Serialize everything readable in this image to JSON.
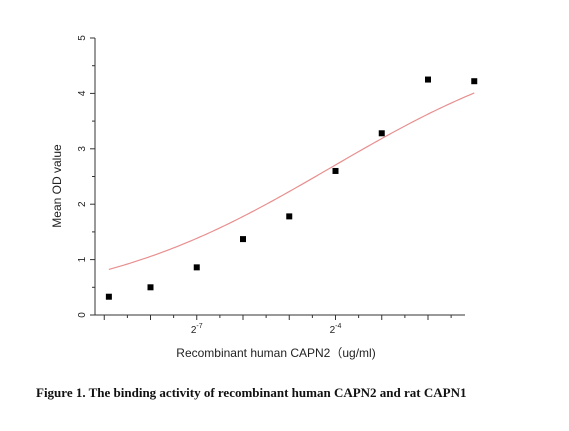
{
  "chart_data": {
    "type": "scatter",
    "xlabel": "Recombinant human  CAPN2（ug/ml)",
    "ylabel": "Mean OD value",
    "x_scale": "log2",
    "x_tick_labels": [
      {
        "base": "2",
        "exp": "-7",
        "value": -7
      },
      {
        "base": "2",
        "exp": "-4",
        "value": -4
      }
    ],
    "xlim": [
      -9.2,
      -1.2
    ],
    "ylim": [
      0,
      5
    ],
    "y_ticks": [
      0,
      1,
      2,
      3,
      4,
      5
    ],
    "grid": false,
    "legend": "none",
    "series": [
      {
        "points": [
          {
            "x": -8.9,
            "y": 0.33
          },
          {
            "x": -8.0,
            "y": 0.5
          },
          {
            "x": -7.0,
            "y": 0.86
          },
          {
            "x": -6.0,
            "y": 1.37
          },
          {
            "x": -5.0,
            "y": 1.78
          },
          {
            "x": -4.0,
            "y": 2.6
          },
          {
            "x": -3.0,
            "y": 3.28
          },
          {
            "x": -2.0,
            "y": 4.25
          },
          {
            "x": -1.0,
            "y": 4.22
          }
        ],
        "marker_color": "#000000"
      }
    ],
    "fit_curve": {
      "type": "4PL",
      "bottom": 0.12,
      "top": 5.2,
      "ec50_log2": -4.1,
      "slope": 0.55,
      "color": "#e88f8f"
    }
  },
  "caption": "Figure 1. The binding activity of recombinant human CAPN2 and rat CAPN1"
}
